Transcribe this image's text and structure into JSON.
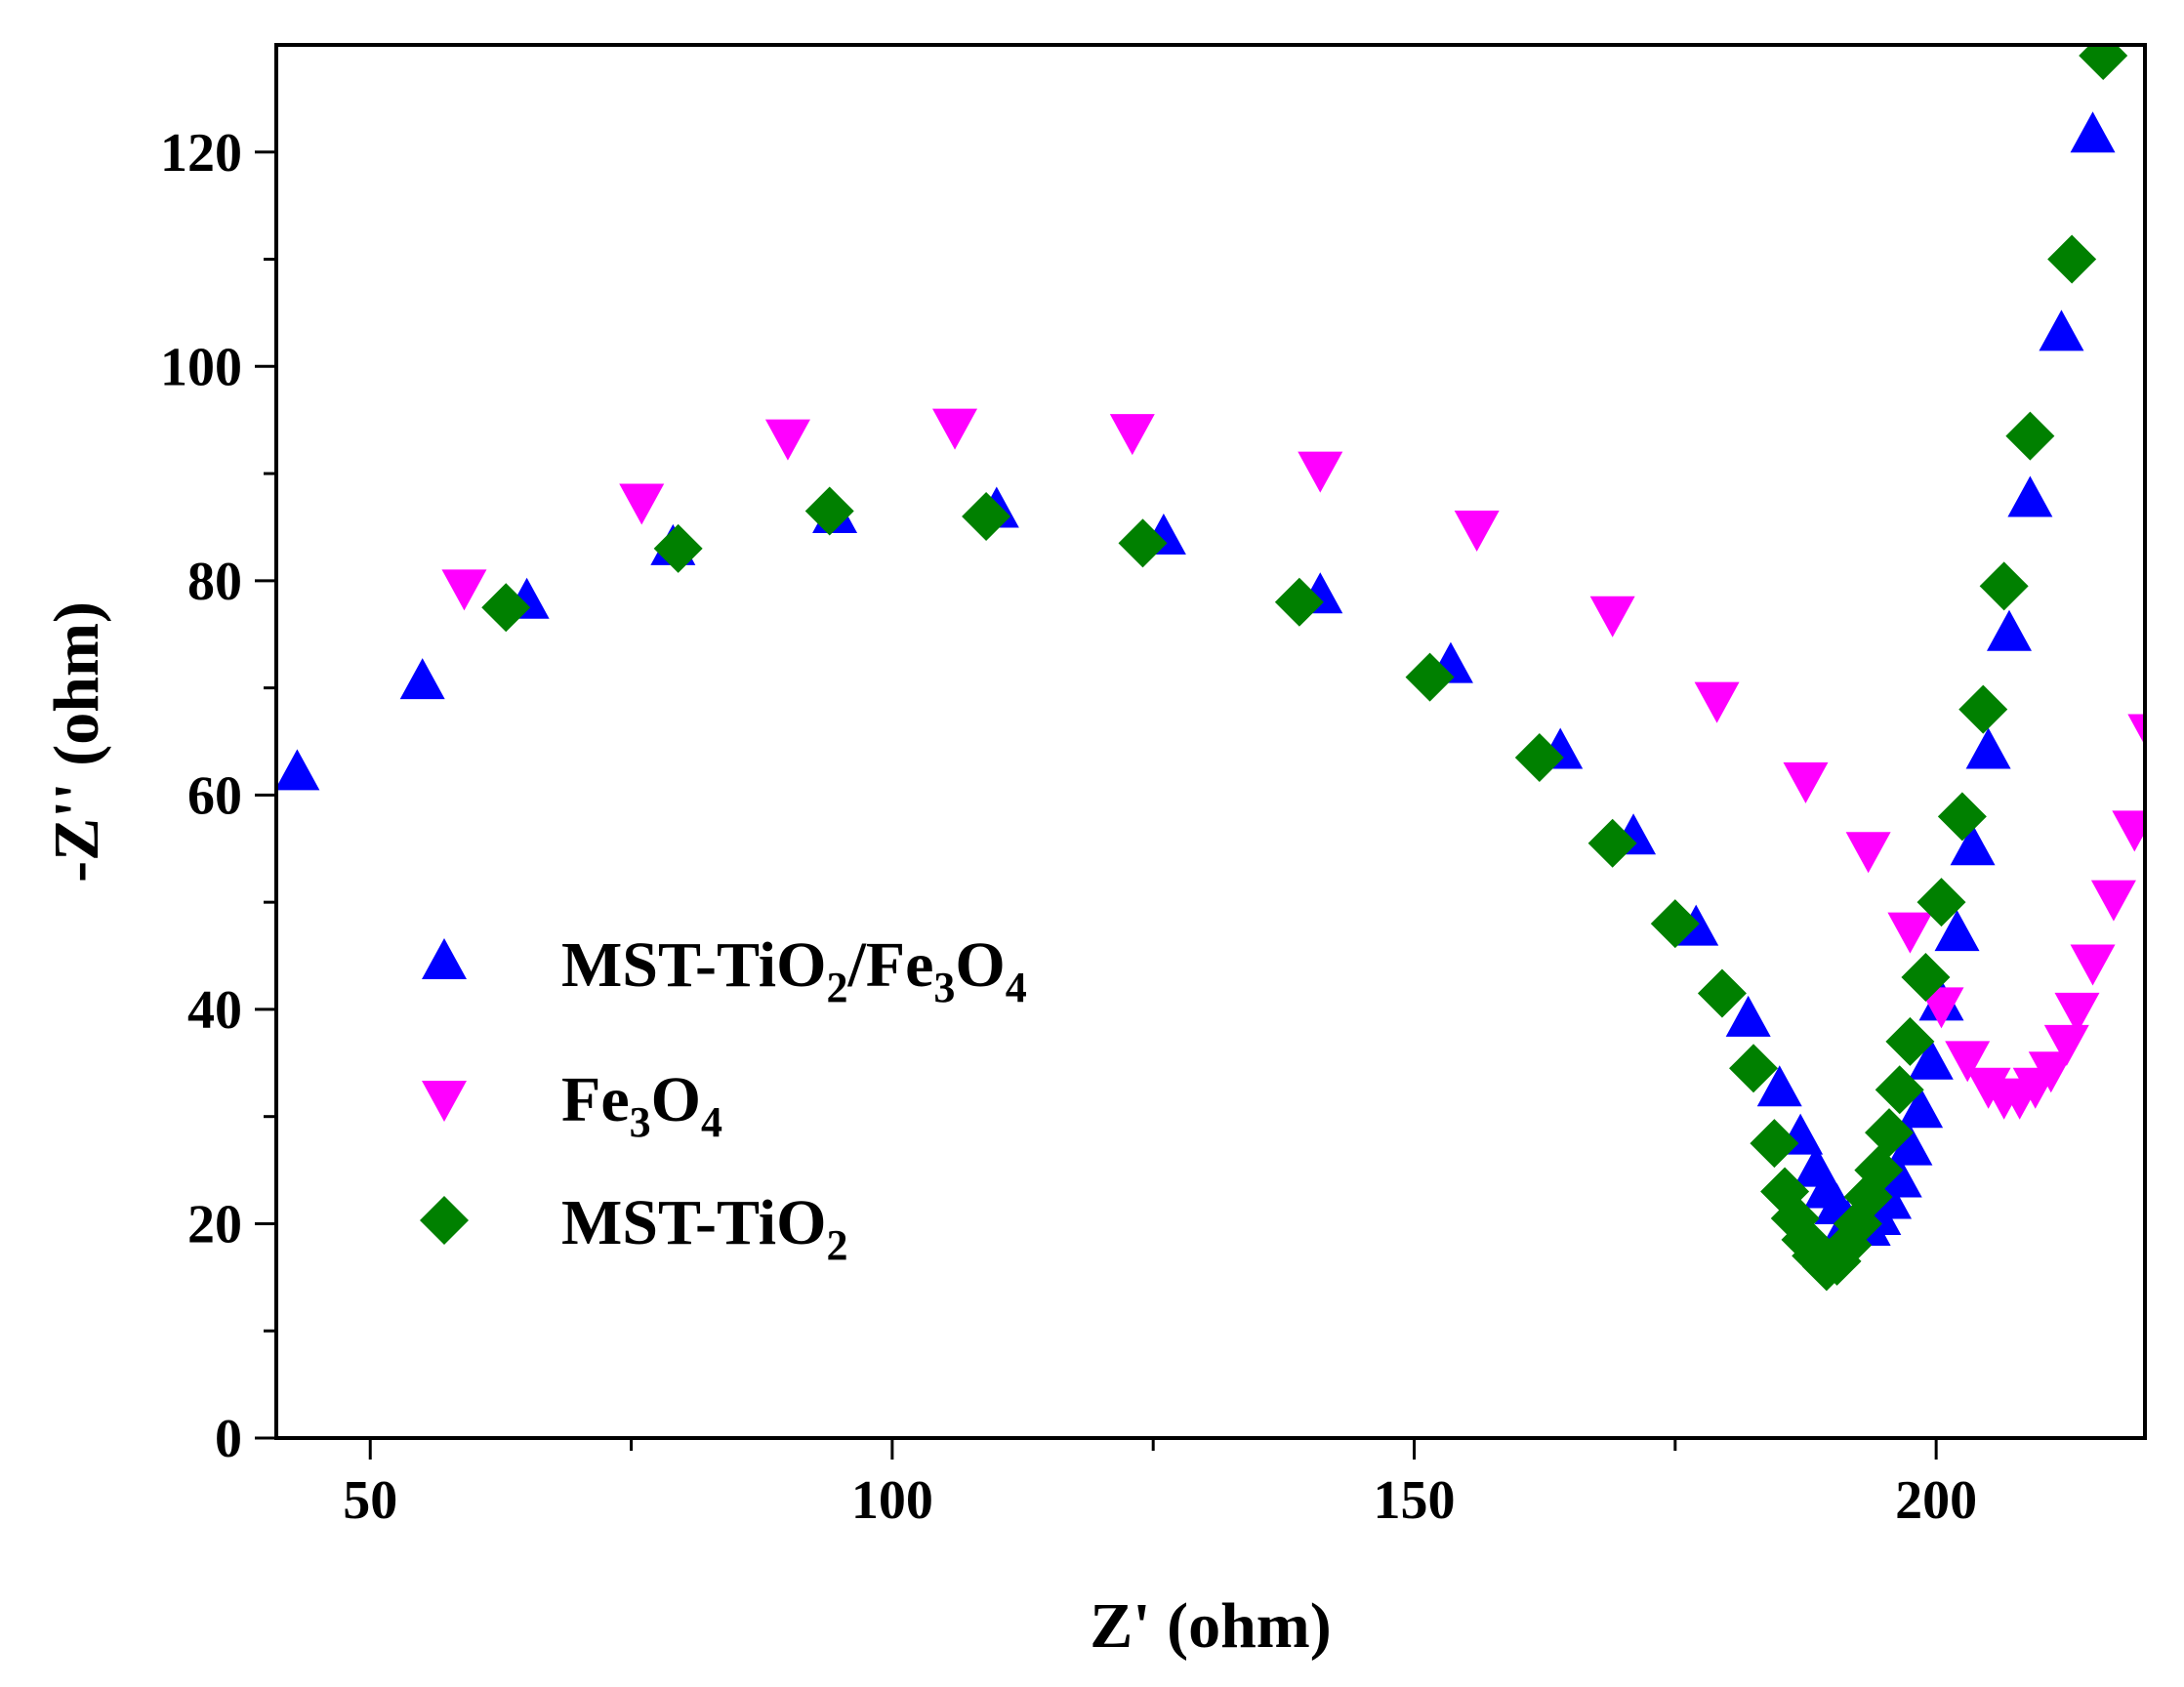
{
  "chart_data": {
    "type": "scatter",
    "title": "",
    "xlabel": "Z' (ohm)",
    "ylabel": "-Z'' (ohm)",
    "xlim": [
      41,
      220
    ],
    "ylim": [
      0,
      130
    ],
    "xticks": [
      50,
      100,
      150,
      200
    ],
    "xtick_labels": [
      "50",
      "100",
      "150",
      "200"
    ],
    "yticks": [
      0,
      20,
      40,
      60,
      80,
      100,
      120
    ],
    "ytick_labels": [
      "0",
      "20",
      "40",
      "60",
      "80",
      "100",
      "120"
    ],
    "legend_position": "center-left",
    "series": [
      {
        "name": "MST-TiO2/Fe3O4",
        "label_parts": [
          [
            "MST-TiO",
            ""
          ],
          [
            "2",
            "sub"
          ],
          [
            "/Fe",
            ""
          ],
          [
            "3",
            "sub"
          ],
          [
            "O",
            ""
          ],
          [
            "4",
            "sub"
          ]
        ],
        "marker": "triangle-up",
        "color": "#0000FF",
        "points": [
          [
            43,
            62
          ],
          [
            55,
            70.5
          ],
          [
            65,
            78
          ],
          [
            79,
            83
          ],
          [
            94.5,
            86
          ],
          [
            110,
            86.5
          ],
          [
            126,
            84
          ],
          [
            141,
            78.5
          ],
          [
            153.5,
            72
          ],
          [
            164,
            64
          ],
          [
            171,
            56
          ],
          [
            177,
            47.5
          ],
          [
            182,
            39
          ],
          [
            185,
            32.5
          ],
          [
            187,
            28
          ],
          [
            188.5,
            25
          ],
          [
            189.5,
            23
          ],
          [
            190.5,
            21.5
          ],
          [
            191.5,
            20
          ],
          [
            192.5,
            19.5
          ],
          [
            193.5,
            19.5
          ],
          [
            194.5,
            20.5
          ],
          [
            195.5,
            22
          ],
          [
            196.5,
            24
          ],
          [
            197.5,
            27
          ],
          [
            198.5,
            30.5
          ],
          [
            199.5,
            35
          ],
          [
            200.5,
            40.5
          ],
          [
            202,
            47
          ],
          [
            203.5,
            55
          ],
          [
            205,
            64
          ],
          [
            207,
            75
          ],
          [
            209,
            87.5
          ],
          [
            212,
            103
          ],
          [
            215,
            121.5
          ]
        ]
      },
      {
        "name": "Fe3O4",
        "label_parts": [
          [
            "Fe",
            ""
          ],
          [
            "3",
            "sub"
          ],
          [
            "O",
            ""
          ],
          [
            "4",
            "sub"
          ]
        ],
        "marker": "triangle-down",
        "color": "#FF00FF",
        "points": [
          [
            59,
            79.5
          ],
          [
            76,
            87.5
          ],
          [
            90,
            93.5
          ],
          [
            106,
            94.5
          ],
          [
            123,
            94
          ],
          [
            141,
            90.5
          ],
          [
            156,
            85
          ],
          [
            169,
            77
          ],
          [
            179,
            69
          ],
          [
            187.5,
            61.5
          ],
          [
            193.5,
            55
          ],
          [
            197.5,
            47.5
          ],
          [
            200.5,
            40.5
          ],
          [
            203,
            35.5
          ],
          [
            205,
            33
          ],
          [
            206.5,
            32
          ],
          [
            208,
            32
          ],
          [
            209.5,
            33
          ],
          [
            211,
            34.5
          ],
          [
            212.5,
            37
          ],
          [
            213.5,
            40
          ],
          [
            215,
            44.5
          ],
          [
            217,
            50.5
          ],
          [
            219,
            57
          ],
          [
            220.5,
            66
          ]
        ]
      },
      {
        "name": "MST-TiO2",
        "label_parts": [
          [
            "MST-TiO",
            ""
          ],
          [
            "2",
            "sub"
          ]
        ],
        "marker": "diamond",
        "color": "#008000",
        "points": [
          [
            63,
            77.5
          ],
          [
            79.5,
            83
          ],
          [
            94,
            86.5
          ],
          [
            109,
            86
          ],
          [
            124,
            83.5
          ],
          [
            139,
            78
          ],
          [
            151.5,
            71
          ],
          [
            162,
            63.5
          ],
          [
            169,
            55.5
          ],
          [
            175,
            48
          ],
          [
            179.5,
            41.5
          ],
          [
            182.5,
            34.5
          ],
          [
            184.5,
            27.5
          ],
          [
            185.5,
            23
          ],
          [
            186.5,
            20.5
          ],
          [
            187.5,
            18.5
          ],
          [
            188.5,
            17
          ],
          [
            189.5,
            16
          ],
          [
            190.5,
            16.5
          ],
          [
            191.5,
            18
          ],
          [
            192.5,
            20
          ],
          [
            193.5,
            22.5
          ],
          [
            194.5,
            25
          ],
          [
            195.5,
            28.5
          ],
          [
            196.5,
            32.5
          ],
          [
            197.5,
            37
          ],
          [
            199,
            43
          ],
          [
            200.5,
            50
          ],
          [
            202.5,
            58
          ],
          [
            204.5,
            68
          ],
          [
            206.5,
            79.5
          ],
          [
            209,
            93.5
          ],
          [
            213,
            110
          ],
          [
            216,
            129
          ]
        ]
      }
    ]
  }
}
